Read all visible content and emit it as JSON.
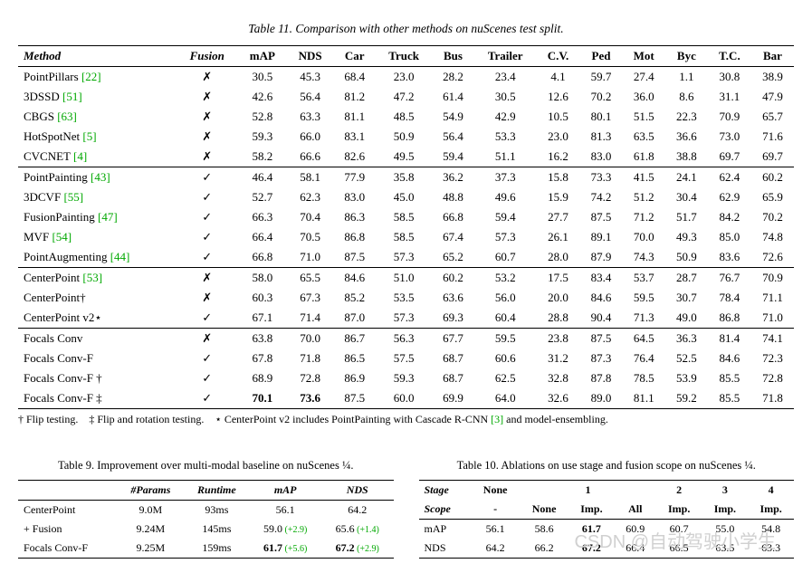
{
  "table11": {
    "caption": "Table 11. Comparison with other methods on nuScenes test split.",
    "headers": [
      "Method",
      "Fusion",
      "mAP",
      "NDS",
      "Car",
      "Truck",
      "Bus",
      "Trailer",
      "C.V.",
      "Ped",
      "Mot",
      "Byc",
      "T.C.",
      "Bar"
    ],
    "groups": [
      {
        "rows": [
          {
            "name": "PointPillars",
            "ref": "[22]",
            "fusion": false,
            "vals": [
              "30.5",
              "45.3",
              "68.4",
              "23.0",
              "28.2",
              "23.4",
              "4.1",
              "59.7",
              "27.4",
              "1.1",
              "30.8",
              "38.9"
            ]
          },
          {
            "name": "3DSSD",
            "ref": "[51]",
            "fusion": false,
            "vals": [
              "42.6",
              "56.4",
              "81.2",
              "47.2",
              "61.4",
              "30.5",
              "12.6",
              "70.2",
              "36.0",
              "8.6",
              "31.1",
              "47.9"
            ]
          },
          {
            "name": "CBGS",
            "ref": "[63]",
            "fusion": false,
            "vals": [
              "52.8",
              "63.3",
              "81.1",
              "48.5",
              "54.9",
              "42.9",
              "10.5",
              "80.1",
              "51.5",
              "22.3",
              "70.9",
              "65.7"
            ]
          },
          {
            "name": "HotSpotNet",
            "ref": "[5]",
            "fusion": false,
            "vals": [
              "59.3",
              "66.0",
              "83.1",
              "50.9",
              "56.4",
              "53.3",
              "23.0",
              "81.3",
              "63.5",
              "36.6",
              "73.0",
              "71.6"
            ]
          },
          {
            "name": "CVCNET",
            "ref": "[4]",
            "fusion": false,
            "vals": [
              "58.2",
              "66.6",
              "82.6",
              "49.5",
              "59.4",
              "51.1",
              "16.2",
              "83.0",
              "61.8",
              "38.8",
              "69.7",
              "69.7"
            ]
          }
        ]
      },
      {
        "rows": [
          {
            "name": "PointPainting",
            "ref": "[43]",
            "fusion": true,
            "vals": [
              "46.4",
              "58.1",
              "77.9",
              "35.8",
              "36.2",
              "37.3",
              "15.8",
              "73.3",
              "41.5",
              "24.1",
              "62.4",
              "60.2"
            ]
          },
          {
            "name": "3DCVF",
            "ref": "[55]",
            "fusion": true,
            "vals": [
              "52.7",
              "62.3",
              "83.0",
              "45.0",
              "48.8",
              "49.6",
              "15.9",
              "74.2",
              "51.2",
              "30.4",
              "62.9",
              "65.9"
            ]
          },
          {
            "name": "FusionPainting",
            "ref": "[47]",
            "fusion": true,
            "vals": [
              "66.3",
              "70.4",
              "86.3",
              "58.5",
              "66.8",
              "59.4",
              "27.7",
              "87.5",
              "71.2",
              "51.7",
              "84.2",
              "70.2"
            ]
          },
          {
            "name": "MVF",
            "ref": "[54]",
            "fusion": true,
            "vals": [
              "66.4",
              "70.5",
              "86.8",
              "58.5",
              "67.4",
              "57.3",
              "26.1",
              "89.1",
              "70.0",
              "49.3",
              "85.0",
              "74.8"
            ]
          },
          {
            "name": "PointAugmenting",
            "ref": "[44]",
            "fusion": true,
            "vals": [
              "66.8",
              "71.0",
              "87.5",
              "57.3",
              "65.2",
              "60.7",
              "28.0",
              "87.9",
              "74.3",
              "50.9",
              "83.6",
              "72.6"
            ]
          }
        ]
      },
      {
        "rows": [
          {
            "name": "CenterPoint",
            "ref": "[53]",
            "fusion": false,
            "vals": [
              "58.0",
              "65.5",
              "84.6",
              "51.0",
              "60.2",
              "53.2",
              "17.5",
              "83.4",
              "53.7",
              "28.7",
              "76.7",
              "70.9"
            ]
          },
          {
            "name": "CenterPoint†",
            "ref": "",
            "fusion": false,
            "vals": [
              "60.3",
              "67.3",
              "85.2",
              "53.5",
              "63.6",
              "56.0",
              "20.0",
              "84.6",
              "59.5",
              "30.7",
              "78.4",
              "71.1"
            ]
          },
          {
            "name": "CenterPoint v2⋆",
            "ref": "",
            "fusion": true,
            "vals": [
              "67.1",
              "71.4",
              "87.0",
              "57.3",
              "69.3",
              "60.4",
              "28.8",
              "90.4",
              "71.3",
              "49.0",
              "86.8",
              "71.0"
            ]
          }
        ]
      },
      {
        "rows": [
          {
            "name": "Focals Conv",
            "ref": "",
            "fusion": false,
            "vals": [
              "63.8",
              "70.0",
              "86.7",
              "56.3",
              "67.7",
              "59.5",
              "23.8",
              "87.5",
              "64.5",
              "36.3",
              "81.4",
              "74.1"
            ]
          },
          {
            "name": "Focals Conv-F",
            "ref": "",
            "fusion": true,
            "vals": [
              "67.8",
              "71.8",
              "86.5",
              "57.5",
              "68.7",
              "60.6",
              "31.2",
              "87.3",
              "76.4",
              "52.5",
              "84.6",
              "72.3"
            ]
          },
          {
            "name": "Focals Conv-F †",
            "ref": "",
            "fusion": true,
            "vals": [
              "68.9",
              "72.8",
              "86.9",
              "59.3",
              "68.7",
              "62.5",
              "32.8",
              "87.8",
              "78.5",
              "53.9",
              "85.5",
              "72.8"
            ]
          },
          {
            "name": "Focals Conv-F ‡",
            "ref": "",
            "fusion": true,
            "vals": [
              "70.1",
              "73.6",
              "87.5",
              "60.0",
              "69.9",
              "64.0",
              "32.6",
              "89.0",
              "81.1",
              "59.2",
              "85.5",
              "71.8"
            ],
            "bold": [
              0,
              1
            ]
          }
        ]
      }
    ],
    "footnote_dagger": "† Flip testing.",
    "footnote_ddagger": "‡ Flip and rotation testing.",
    "footnote_star": "⋆ CenterPoint v2 includes PointPainting with Cascade R-CNN",
    "footnote_star_ref": "[3]",
    "footnote_star_tail": " and model-ensembling."
  },
  "table9": {
    "caption_a": "Table 9. Improvement over multi-modal baseline on nuScenes ",
    "caption_frac": "¼",
    "caption_b": ".",
    "headers": [
      "",
      "#Params",
      "Runtime",
      "mAP",
      "NDS"
    ],
    "rows": [
      {
        "cells": [
          "CenterPoint",
          "9.0M",
          "93ms",
          "56.1",
          "",
          "64.2",
          ""
        ]
      },
      {
        "cells": [
          "+ Fusion",
          "9.24M",
          "145ms",
          "59.0",
          "(+2.9)",
          "65.6",
          "(+1.4)"
        ]
      },
      {
        "cells": [
          "Focals Conv-F",
          "9.25M",
          "159ms",
          "61.7",
          "(+5.6)",
          "67.2",
          "(+2.9)"
        ],
        "bold": [
          3,
          5
        ]
      }
    ]
  },
  "table10": {
    "caption_a": "Table 10. Ablations on use stage and fusion scope on nuScenes ",
    "caption_frac": "¼",
    "caption_b": ".",
    "stage_label": "Stage",
    "scope_label": "Scope",
    "stage_heads": [
      "None",
      "1",
      "2",
      "3",
      "4"
    ],
    "scope_heads": [
      "-",
      "None",
      "Imp.",
      "All",
      "Imp.",
      "Imp.",
      "Imp."
    ],
    "rows": [
      {
        "label": "mAP",
        "vals": [
          "56.1",
          "58.6",
          "61.7",
          "60.9",
          "60.7",
          "55.0",
          "54.8"
        ],
        "bold": [
          2
        ]
      },
      {
        "label": "NDS",
        "vals": [
          "64.2",
          "66.2",
          "67.2",
          "66.4",
          "66.5",
          "63.5",
          "63.3"
        ],
        "bold": [
          2
        ]
      }
    ]
  },
  "watermark": "CSDN @自动驾驶小学生",
  "glyphs": {
    "check": "✓",
    "cross": "✗"
  }
}
